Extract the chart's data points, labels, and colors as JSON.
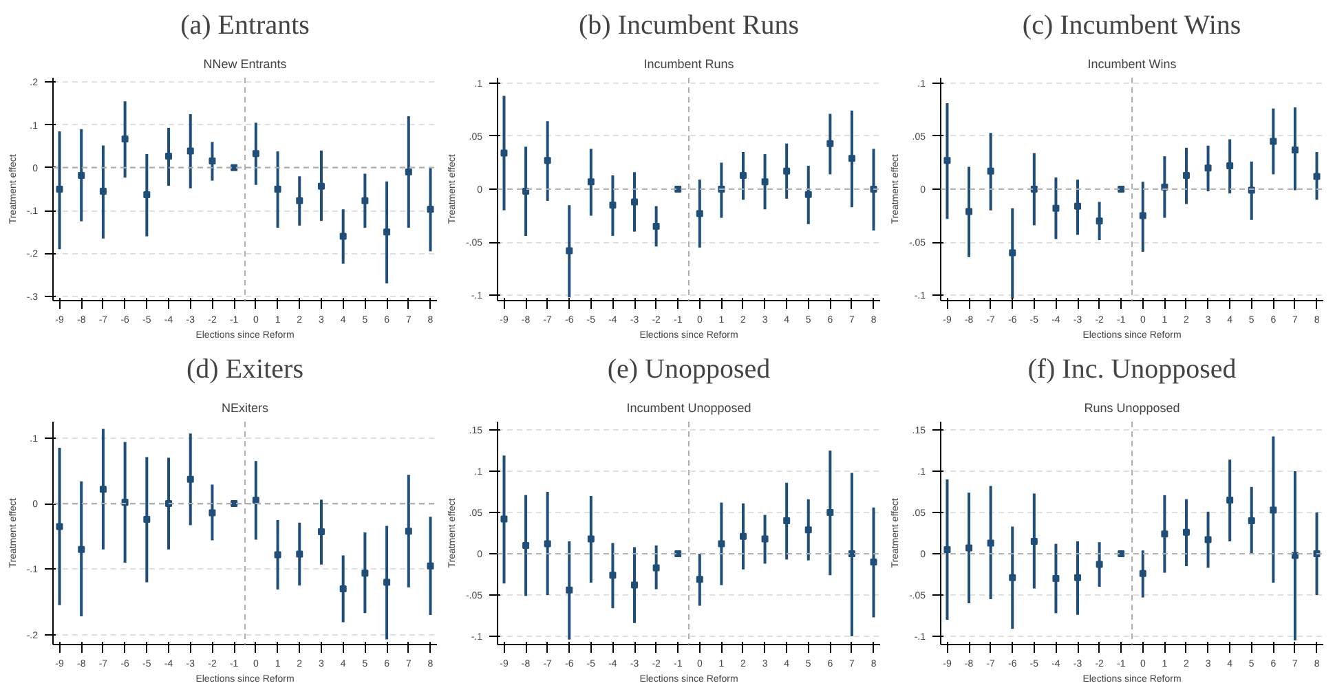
{
  "chart_data": [
    {
      "type": "scatter",
      "title": "(a) Entrants",
      "subtitle": "NNew Entrants",
      "xlabel": "Elections since Reform",
      "ylabel": "Treatment effect",
      "marker": "square",
      "color": "#1f4e79",
      "grid": "y",
      "x": [
        -9,
        -8,
        -7,
        -6,
        -5,
        -4,
        -3,
        -2,
        -1,
        0,
        1,
        2,
        3,
        4,
        5,
        6,
        7,
        8
      ],
      "values": [
        -0.05,
        -0.018,
        -0.055,
        0.067,
        -0.063,
        0.027,
        0.039,
        0.016,
        0,
        0.033,
        -0.05,
        -0.077,
        -0.043,
        -0.16,
        -0.077,
        -0.15,
        -0.01,
        -0.097
      ],
      "errors": [
        [
          -0.19,
          0.085
        ],
        [
          -0.125,
          0.09
        ],
        [
          -0.165,
          0.052
        ],
        [
          -0.023,
          0.155
        ],
        [
          -0.16,
          0.032
        ],
        [
          -0.042,
          0.093
        ],
        [
          -0.048,
          0.125
        ],
        [
          -0.03,
          0.06
        ],
        null,
        [
          -0.04,
          0.105
        ],
        [
          -0.14,
          0.038
        ],
        [
          -0.135,
          -0.02
        ],
        [
          -0.124,
          0.04
        ],
        [
          -0.224,
          -0.097
        ],
        [
          -0.14,
          -0.014
        ],
        [
          -0.27,
          -0.032
        ],
        [
          -0.14,
          0.12
        ],
        [
          -0.195,
          0
        ]
      ],
      "xlim": [
        -9.3,
        8.3
      ],
      "xticks": [
        -9,
        -8,
        -7,
        -6,
        -5,
        -4,
        -3,
        -2,
        -1,
        0,
        1,
        2,
        3,
        4,
        5,
        6,
        7,
        8
      ],
      "ylim": [
        -0.31,
        0.21
      ],
      "yticks": [
        {
          "value": -0.3,
          "label": "-.3"
        },
        {
          "value": -0.2,
          "label": "-.2"
        },
        {
          "value": -0.1,
          "label": "-.1"
        },
        {
          "value": 0,
          "label": "0"
        },
        {
          "value": 0.1,
          "label": ".1"
        },
        {
          "value": 0.2,
          "label": ".2"
        }
      ],
      "ref_lines": [
        {
          "axis": "y",
          "value": 0,
          "line_style": "dashed",
          "color": "#b0b0b0"
        },
        {
          "axis": "x",
          "value": -0.5,
          "line_style": "dashed",
          "color": "#b0b0b0"
        }
      ]
    },
    {
      "type": "scatter",
      "title": "(b) Incumbent Runs",
      "subtitle": "Incumbent Runs",
      "xlabel": "Elections since Reform",
      "ylabel": "Treatment effect",
      "marker": "square",
      "color": "#1f4e79",
      "grid": "y",
      "x": [
        -9,
        -8,
        -7,
        -6,
        -5,
        -4,
        -3,
        -2,
        -1,
        0,
        1,
        2,
        3,
        4,
        5,
        6,
        7,
        8
      ],
      "values": [
        0.034,
        -0.002,
        0.027,
        -0.058,
        0.007,
        -0.015,
        -0.012,
        -0.035,
        0,
        -0.023,
        0,
        0.013,
        0.007,
        0.017,
        -0.005,
        0.043,
        0.029,
        0
      ],
      "errors": [
        [
          -0.02,
          0.088
        ],
        [
          -0.044,
          0.04
        ],
        [
          -0.011,
          0.064
        ],
        [
          -0.102,
          -0.015
        ],
        [
          -0.025,
          0.038
        ],
        [
          -0.044,
          0.013
        ],
        [
          -0.04,
          0.016
        ],
        [
          -0.054,
          -0.016
        ],
        null,
        [
          -0.055,
          0.009
        ],
        [
          -0.027,
          0.025
        ],
        [
          -0.01,
          0.035
        ],
        [
          -0.019,
          0.033
        ],
        [
          -0.009,
          0.043
        ],
        [
          -0.033,
          0.022
        ],
        [
          0.014,
          0.071
        ],
        [
          -0.017,
          0.074
        ],
        [
          -0.039,
          0.038
        ]
      ],
      "xlim": [
        -9.3,
        8.3
      ],
      "xticks": [
        -9,
        -8,
        -7,
        -6,
        -5,
        -4,
        -3,
        -2,
        -1,
        0,
        1,
        2,
        3,
        4,
        5,
        6,
        7,
        8
      ],
      "ylim": [
        -0.105,
        0.105
      ],
      "yticks": [
        {
          "value": -0.1,
          "label": "-.1"
        },
        {
          "value": -0.05,
          "label": "-.05"
        },
        {
          "value": 0,
          "label": "0"
        },
        {
          "value": 0.05,
          "label": ".05"
        },
        {
          "value": 0.1,
          "label": ".1"
        }
      ],
      "ref_lines": [
        {
          "axis": "y",
          "value": 0,
          "line_style": "dashed",
          "color": "#b0b0b0"
        },
        {
          "axis": "x",
          "value": -0.5,
          "line_style": "dashed",
          "color": "#b0b0b0"
        }
      ]
    },
    {
      "type": "scatter",
      "title": "(c) Incumbent Wins",
      "subtitle": "Incumbent Wins",
      "xlabel": "Elections since Reform",
      "ylabel": "Treatment effect",
      "marker": "square",
      "color": "#1f4e79",
      "grid": "y",
      "x": [
        -9,
        -8,
        -7,
        -6,
        -5,
        -4,
        -3,
        -2,
        -1,
        0,
        1,
        2,
        3,
        4,
        5,
        6,
        7,
        8
      ],
      "values": [
        0.027,
        -0.021,
        0.017,
        -0.06,
        0,
        -0.018,
        -0.016,
        -0.03,
        0,
        -0.025,
        0.002,
        0.013,
        0.02,
        0.022,
        -0.001,
        0.045,
        0.037,
        0.012
      ],
      "errors": [
        [
          -0.028,
          0.081
        ],
        [
          -0.064,
          0.021
        ],
        [
          -0.02,
          0.053
        ],
        [
          -0.103,
          -0.018
        ],
        [
          -0.034,
          0.034
        ],
        [
          -0.047,
          0.011
        ],
        [
          -0.043,
          0.009
        ],
        [
          -0.048,
          -0.012
        ],
        null,
        [
          -0.059,
          0.007
        ],
        [
          -0.027,
          0.031
        ],
        [
          -0.014,
          0.039
        ],
        [
          -0.002,
          0.041
        ],
        [
          -0.004,
          0.047
        ],
        [
          -0.029,
          0.026
        ],
        [
          0.014,
          0.076
        ],
        [
          -0.001,
          0.077
        ],
        [
          -0.01,
          0.035
        ]
      ],
      "xlim": [
        -9.3,
        8.3
      ],
      "xticks": [
        -9,
        -8,
        -7,
        -6,
        -5,
        -4,
        -3,
        -2,
        -1,
        0,
        1,
        2,
        3,
        4,
        5,
        6,
        7,
        8
      ],
      "ylim": [
        -0.105,
        0.105
      ],
      "yticks": [
        {
          "value": -0.1,
          "label": "-.1"
        },
        {
          "value": -0.05,
          "label": "-.05"
        },
        {
          "value": 0,
          "label": "0"
        },
        {
          "value": 0.05,
          "label": ".05"
        },
        {
          "value": 0.1,
          "label": ".1"
        }
      ],
      "ref_lines": [
        {
          "axis": "y",
          "value": 0,
          "line_style": "dashed",
          "color": "#b0b0b0"
        },
        {
          "axis": "x",
          "value": -0.5,
          "line_style": "dashed",
          "color": "#b0b0b0"
        }
      ]
    },
    {
      "type": "scatter",
      "title": "(d) Exiters",
      "subtitle": "NExiters",
      "xlabel": "Elections since Reform",
      "ylabel": "Treatment effect",
      "marker": "square",
      "color": "#1f4e79",
      "grid": "y",
      "x": [
        -9,
        -8,
        -7,
        -6,
        -5,
        -4,
        -3,
        -2,
        -1,
        0,
        1,
        2,
        3,
        4,
        5,
        6,
        7,
        8
      ],
      "values": [
        -0.035,
        -0.07,
        0.022,
        0.002,
        -0.024,
        0,
        0.037,
        -0.014,
        0,
        0.005,
        -0.078,
        -0.077,
        -0.043,
        -0.13,
        -0.106,
        -0.12,
        -0.042,
        -0.095
      ],
      "errors": [
        [
          -0.155,
          0.085
        ],
        [
          -0.172,
          0.034
        ],
        [
          -0.07,
          0.114
        ],
        [
          -0.09,
          0.094
        ],
        [
          -0.12,
          0.071
        ],
        [
          -0.07,
          0.07
        ],
        [
          -0.033,
          0.107
        ],
        [
          -0.056,
          0.029
        ],
        null,
        [
          -0.055,
          0.065
        ],
        [
          -0.131,
          -0.025
        ],
        [
          -0.125,
          -0.029
        ],
        [
          -0.093,
          0.006
        ],
        [
          -0.181,
          -0.079
        ],
        [
          -0.167,
          -0.044
        ],
        [
          -0.207,
          -0.034
        ],
        [
          -0.128,
          0.044
        ],
        [
          -0.17,
          -0.02
        ]
      ],
      "xlim": [
        -9.3,
        8.3
      ],
      "xticks": [
        -9,
        -8,
        -7,
        -6,
        -5,
        -4,
        -3,
        -2,
        -1,
        0,
        1,
        2,
        3,
        4,
        5,
        6,
        7,
        8
      ],
      "ylim": [
        -0.215,
        0.125
      ],
      "yticks": [
        {
          "value": -0.2,
          "label": "-.2"
        },
        {
          "value": -0.1,
          "label": "-.1"
        },
        {
          "value": 0,
          "label": "0"
        },
        {
          "value": 0.1,
          "label": ".1"
        }
      ],
      "ref_lines": [
        {
          "axis": "y",
          "value": 0,
          "line_style": "dashed",
          "color": "#b0b0b0"
        },
        {
          "axis": "x",
          "value": -0.5,
          "line_style": "dashed",
          "color": "#b0b0b0"
        }
      ]
    },
    {
      "type": "scatter",
      "title": "(e) Unopposed",
      "subtitle": "Incumbent Unopposed",
      "xlabel": "Elections since Reform",
      "ylabel": "Treatment effect",
      "marker": "square",
      "color": "#1f4e79",
      "grid": "y",
      "x": [
        -9,
        -8,
        -7,
        -6,
        -5,
        -4,
        -3,
        -2,
        -1,
        0,
        1,
        2,
        3,
        4,
        5,
        6,
        7,
        8
      ],
      "values": [
        0.042,
        0.01,
        0.012,
        -0.044,
        0.018,
        -0.026,
        -0.038,
        -0.017,
        0,
        -0.031,
        0.012,
        0.021,
        0.018,
        0.04,
        0.029,
        0.05,
        0,
        -0.01
      ],
      "errors": [
        [
          -0.036,
          0.119
        ],
        [
          -0.051,
          0.071
        ],
        [
          -0.05,
          0.075
        ],
        [
          -0.104,
          0.015
        ],
        [
          -0.035,
          0.07
        ],
        [
          -0.066,
          0.013
        ],
        [
          -0.084,
          0.008
        ],
        [
          -0.043,
          0.01
        ],
        null,
        [
          -0.063,
          0
        ],
        [
          -0.038,
          0.062
        ],
        [
          -0.019,
          0.061
        ],
        [
          -0.012,
          0.047
        ],
        [
          -0.007,
          0.086
        ],
        [
          -0.008,
          0.066
        ],
        [
          -0.026,
          0.125
        ],
        [
          -0.1,
          0.098
        ],
        [
          -0.077,
          0.056
        ]
      ],
      "xlim": [
        -9.3,
        8.3
      ],
      "xticks": [
        -9,
        -8,
        -7,
        -6,
        -5,
        -4,
        -3,
        -2,
        -1,
        0,
        1,
        2,
        3,
        4,
        5,
        6,
        7,
        8
      ],
      "ylim": [
        -0.11,
        0.16
      ],
      "yticks": [
        {
          "value": -0.1,
          "label": "-.1"
        },
        {
          "value": -0.05,
          "label": "-.05"
        },
        {
          "value": 0,
          "label": "0"
        },
        {
          "value": 0.05,
          "label": ".05"
        },
        {
          "value": 0.1,
          "label": ".1"
        },
        {
          "value": 0.15,
          "label": ".15"
        }
      ],
      "ref_lines": [
        {
          "axis": "y",
          "value": 0,
          "line_style": "dashed",
          "color": "#b0b0b0"
        },
        {
          "axis": "x",
          "value": -0.5,
          "line_style": "dashed",
          "color": "#b0b0b0"
        }
      ]
    },
    {
      "type": "scatter",
      "title": "(f) Inc. Unopposed",
      "subtitle": "Runs Unopposed",
      "xlabel": "Elections since Reform",
      "ylabel": "Treatment effect",
      "marker": "square",
      "color": "#1f4e79",
      "grid": "y",
      "x": [
        -9,
        -8,
        -7,
        -6,
        -5,
        -4,
        -3,
        -2,
        -1,
        0,
        1,
        2,
        3,
        4,
        5,
        6,
        7,
        8
      ],
      "values": [
        0.005,
        0.007,
        0.013,
        -0.029,
        0.015,
        -0.03,
        -0.029,
        -0.013,
        0,
        -0.024,
        0.024,
        0.026,
        0.017,
        0.065,
        0.04,
        0.053,
        -0.002,
        0
      ],
      "errors": [
        [
          -0.08,
          0.09
        ],
        [
          -0.06,
          0.074
        ],
        [
          -0.055,
          0.082
        ],
        [
          -0.091,
          0.033
        ],
        [
          -0.042,
          0.073
        ],
        [
          -0.072,
          0.012
        ],
        [
          -0.074,
          0.015
        ],
        [
          -0.04,
          0.014
        ],
        null,
        [
          -0.053,
          0.004
        ],
        [
          -0.023,
          0.071
        ],
        [
          -0.015,
          0.066
        ],
        [
          -0.017,
          0.051
        ],
        [
          0.015,
          0.114
        ],
        [
          0,
          0.081
        ],
        [
          -0.035,
          0.142
        ],
        [
          -0.105,
          0.1
        ],
        [
          -0.05,
          0.05
        ]
      ],
      "xlim": [
        -9.3,
        8.3
      ],
      "xticks": [
        -9,
        -8,
        -7,
        -6,
        -5,
        -4,
        -3,
        -2,
        -1,
        0,
        1,
        2,
        3,
        4,
        5,
        6,
        7,
        8
      ],
      "ylim": [
        -0.11,
        0.16
      ],
      "yticks": [
        {
          "value": -0.1,
          "label": "-.1"
        },
        {
          "value": -0.05,
          "label": "-.05"
        },
        {
          "value": 0,
          "label": "0"
        },
        {
          "value": 0.05,
          "label": ".05"
        },
        {
          "value": 0.1,
          "label": ".1"
        },
        {
          "value": 0.15,
          "label": ".15"
        }
      ],
      "ref_lines": [
        {
          "axis": "y",
          "value": 0,
          "line_style": "dashed",
          "color": "#b0b0b0"
        },
        {
          "axis": "x",
          "value": -0.5,
          "line_style": "dashed",
          "color": "#b0b0b0"
        }
      ]
    }
  ]
}
